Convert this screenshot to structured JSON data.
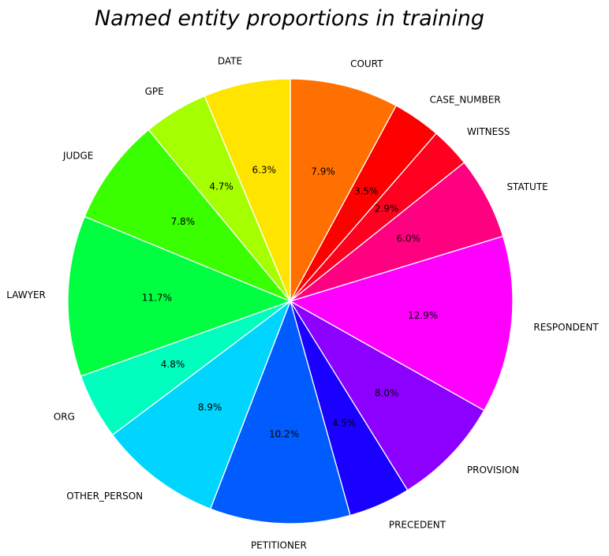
{
  "chart_data": {
    "type": "pie",
    "title": "Named entity proportions in training",
    "start_angle_deg": 90,
    "direction": "clockwise",
    "slices": [
      {
        "label": "COURT",
        "value": 7.9,
        "pct_label": "7.9%",
        "color": "#ff7000"
      },
      {
        "label": "CASE_NUMBER",
        "value": 3.5,
        "pct_label": "3.5%",
        "color": "#ff0000"
      },
      {
        "label": "WITNESS",
        "value": 2.9,
        "pct_label": "2.9%",
        "color": "#ff0020"
      },
      {
        "label": "STATUTE",
        "value": 6.0,
        "pct_label": "6.0%",
        "color": "#ff0080"
      },
      {
        "label": "RESPONDENT",
        "value": 12.9,
        "pct_label": "12.9%",
        "color": "#ff00ff"
      },
      {
        "label": "PROVISION",
        "value": 8.0,
        "pct_label": "8.0%",
        "color": "#8c00ff"
      },
      {
        "label": "PRECEDENT",
        "value": 4.5,
        "pct_label": "4.5%",
        "color": "#1a00ff"
      },
      {
        "label": "PETITIONER",
        "value": 10.2,
        "pct_label": "10.2%",
        "color": "#005cff"
      },
      {
        "label": "OTHER_PERSON",
        "value": 8.9,
        "pct_label": "8.9%",
        "color": "#00d5ff"
      },
      {
        "label": "ORG",
        "value": 4.8,
        "pct_label": "4.8%",
        "color": "#00ffbf"
      },
      {
        "label": "LAWYER",
        "value": 11.7,
        "pct_label": "11.7%",
        "color": "#00ff40"
      },
      {
        "label": "JUDGE",
        "value": 7.8,
        "pct_label": "7.8%",
        "color": "#3aff00"
      },
      {
        "label": "GPE",
        "value": 4.7,
        "pct_label": "4.7%",
        "color": "#a5ff00"
      },
      {
        "label": "DATE",
        "value": 6.3,
        "pct_label": "6.3%",
        "color": "#ffe400"
      }
    ]
  }
}
